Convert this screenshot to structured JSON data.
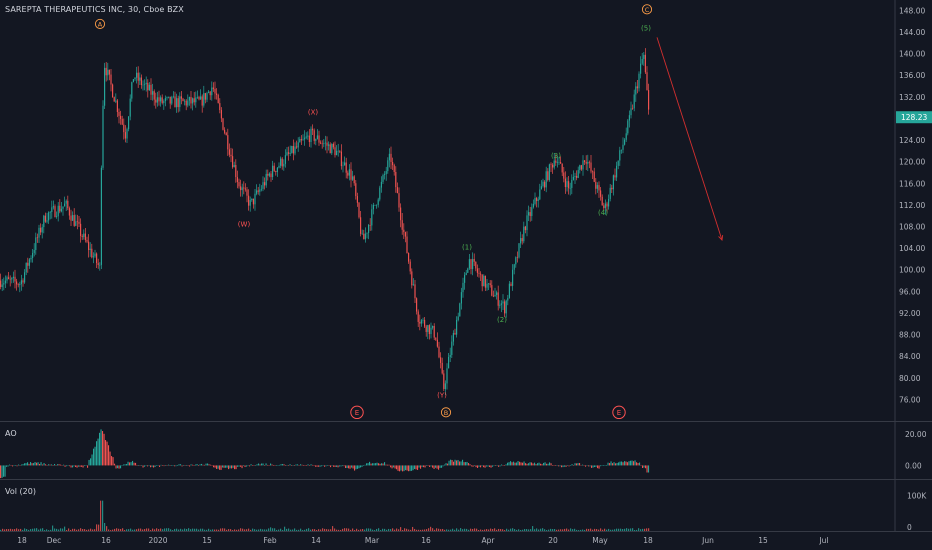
{
  "chart_title": "SAREPTA THERAPEUTICS INC, 30, Cboe BZX",
  "colors": {
    "background": "#131722",
    "up_candle": "#26a69a",
    "down_candle": "#ef5350",
    "text": "#b2b5be",
    "grid_border": "#363a45",
    "price_badge": "#26a69a",
    "wave_orange": "#ff9e48",
    "wave_red": "#ff5252",
    "wave_green": "#4caf50",
    "forecast_arrow": "#d32f2f"
  },
  "chart_data": {
    "type": "candlestick",
    "title": "SAREPTA THERAPEUTICS INC, 30, Cboe BZX",
    "timeframe": "30",
    "exchange": "Cboe BZX",
    "x_tick_labels": [
      "18",
      "Dec",
      "16",
      "2020",
      "15",
      "Feb",
      "14",
      "Mar",
      "16",
      "Apr",
      "20",
      "May",
      "18",
      "Jun",
      "15",
      "Jul"
    ],
    "y_tick_labels": [
      "76.00",
      "80.00",
      "84.00",
      "88.00",
      "92.00",
      "96.00",
      "100.00",
      "104.00",
      "108.00",
      "112.00",
      "116.00",
      "120.00",
      "124.00",
      "128.00",
      "132.00",
      "136.00",
      "140.00",
      "144.00",
      "148.00"
    ],
    "y_ticks": [
      76,
      80,
      84,
      88,
      92,
      96,
      100,
      104,
      108,
      112,
      116,
      120,
      124,
      128,
      132,
      136,
      140,
      144,
      148
    ],
    "ylim": [
      72,
      149
    ],
    "last_price": "128.23",
    "price_path_approx": [
      [
        0,
        98
      ],
      [
        20,
        97.5
      ],
      [
        45,
        110
      ],
      [
        65,
        112
      ],
      [
        100,
        100
      ],
      [
        101,
        125
      ],
      [
        104,
        138
      ],
      [
        125,
        125
      ],
      [
        133,
        136
      ],
      [
        160,
        131
      ],
      [
        200,
        131
      ],
      [
        212,
        134
      ],
      [
        238,
        116
      ],
      [
        250,
        112
      ],
      [
        270,
        118
      ],
      [
        310,
        125
      ],
      [
        335,
        122
      ],
      [
        352,
        117
      ],
      [
        362,
        105
      ],
      [
        390,
        121
      ],
      [
        418,
        91
      ],
      [
        435,
        88
      ],
      [
        443,
        78
      ],
      [
        450,
        85
      ],
      [
        468,
        102
      ],
      [
        482,
        98
      ],
      [
        504,
        93
      ],
      [
        524,
        108
      ],
      [
        555,
        121
      ],
      [
        568,
        115
      ],
      [
        585,
        121
      ],
      [
        604,
        111
      ],
      [
        628,
        127
      ],
      [
        643,
        140
      ],
      [
        649,
        127
      ]
    ],
    "waves": [
      {
        "label": "A",
        "x": 100,
        "price": 145.5,
        "circled": true,
        "color": "orange"
      },
      {
        "label": "(W)",
        "x": 244,
        "price": 108.5,
        "circled": false,
        "color": "red"
      },
      {
        "label": "(X)",
        "x": 313,
        "price": 129.2,
        "circled": false,
        "color": "red"
      },
      {
        "label": "(Y)",
        "x": 442,
        "price": 76.8,
        "circled": false,
        "color": "red"
      },
      {
        "label": "B",
        "x": 446,
        "price": 73.6,
        "circled": true,
        "color": "orange"
      },
      {
        "label": "(1)",
        "x": 467,
        "price": 104.2,
        "circled": false,
        "color": "green"
      },
      {
        "label": "(2)",
        "x": 502,
        "price": 90.8,
        "circled": false,
        "color": "green"
      },
      {
        "label": "(3)",
        "x": 556,
        "price": 121.2,
        "circled": false,
        "color": "green"
      },
      {
        "label": "(4)",
        "x": 603,
        "price": 110.6,
        "circled": false,
        "color": "green"
      },
      {
        "label": "(5)",
        "x": 646,
        "price": 144.8,
        "circled": false,
        "color": "green"
      },
      {
        "label": "C",
        "x": 647,
        "price": 148.2,
        "circled": true,
        "color": "orange"
      }
    ],
    "event_markers": [
      {
        "label": "E",
        "x": 357,
        "price": 73.6
      },
      {
        "label": "E",
        "x": 619,
        "price": 73.6
      }
    ],
    "forecast_arrow": {
      "from": [
        657,
        143
      ],
      "to": [
        722,
        105.5
      ]
    },
    "indicators": [
      {
        "name": "AO",
        "tick_labels": [
          "20.00",
          "0.00"
        ],
        "ticks": [
          20,
          0
        ],
        "ylim": [
          -8,
          27
        ],
        "spike_x": 101,
        "spike_value": 24
      },
      {
        "name": "Vol (20)",
        "tick_labels": [
          "100K",
          "0"
        ],
        "ticks": [
          100000,
          0
        ],
        "ylim": [
          0,
          140000
        ],
        "spike_x": 101,
        "spike_value": 85000
      }
    ]
  }
}
